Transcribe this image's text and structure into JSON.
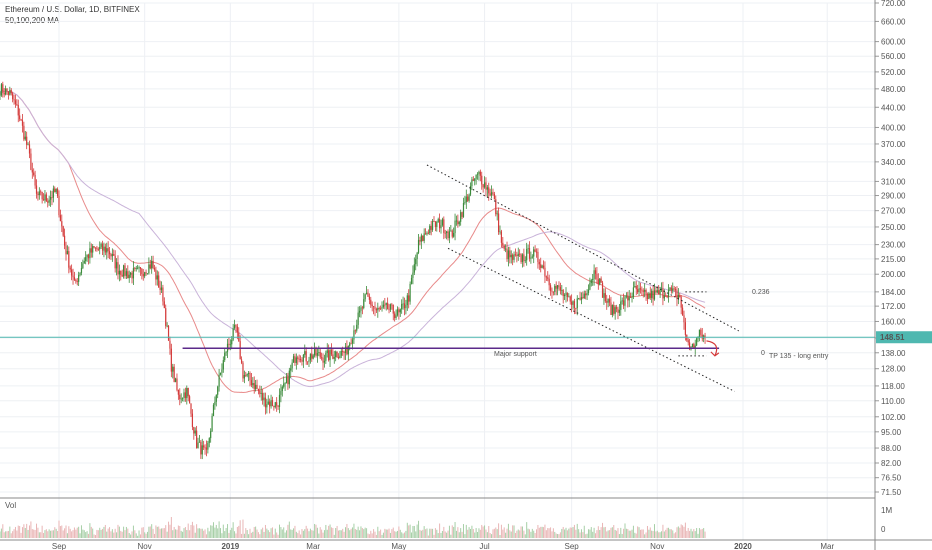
{
  "header": {
    "title": "Ethereum / U.S. Dollar, 1D, BITFINEX",
    "indicator": "50,100,200 MA"
  },
  "volume_pane": {
    "label": "Vol",
    "ticks": [
      "1M",
      "0"
    ]
  },
  "price_label": "148.51",
  "colors": {
    "up": "#3a8a3a",
    "down": "#d43a3a",
    "ma_fast": "#e88a8a",
    "ma_slow": "#c9b3d9",
    "support_line": "#5b2a8a",
    "price_line": "#4fb8b0",
    "arrow": "#d43a3a"
  },
  "annotations": {
    "support": "Major support",
    "fib": "0.236",
    "fib_zero": "0",
    "tp": "TP 135 - long entry"
  },
  "chart_data": {
    "type": "candlestick",
    "title": "Ethereum / U.S. Dollar, 1D, BITFINEX",
    "xlabel": "",
    "ylabel": "",
    "y_scale": "log",
    "y_ticks": [
      720,
      660,
      600,
      560,
      520,
      480,
      440,
      400,
      370,
      340,
      310,
      290,
      270,
      250,
      230,
      215,
      200,
      184,
      172,
      160,
      148,
      138,
      128,
      118,
      110,
      102,
      95,
      88,
      82,
      76.5,
      71.5
    ],
    "y_tick_labels": [
      "720.00",
      "660.00",
      "600.00",
      "560.00",
      "520.00",
      "480.00",
      "440.00",
      "400.00",
      "370.00",
      "340.00",
      "310.00",
      "290.00",
      "270.00",
      "250.00",
      "230.00",
      "215.00",
      "200.00",
      "184.00",
      "172.00",
      "160.00",
      "148.00",
      "138.00",
      "128.00",
      "118.00",
      "110.00",
      "102.00",
      "95.00",
      "88.00",
      "82.00",
      "76.50",
      "71.50"
    ],
    "x_ticks": [
      "Sep",
      "Nov",
      "2019",
      "Mar",
      "May",
      "Jul",
      "Sep",
      "Nov",
      "2020",
      "Mar"
    ],
    "x_range": [
      "2018-07-21",
      "2020-04-04"
    ],
    "last_price": 148.51,
    "price_path": [
      [
        "2018-07-21",
        480
      ],
      [
        "2018-07-28",
        470
      ],
      [
        "2018-08-03",
        430
      ],
      [
        "2018-08-10",
        360
      ],
      [
        "2018-08-16",
        290
      ],
      [
        "2018-08-23",
        285
      ],
      [
        "2018-08-30",
        295
      ],
      [
        "2018-09-05",
        230
      ],
      [
        "2018-09-12",
        190
      ],
      [
        "2018-09-19",
        215
      ],
      [
        "2018-09-26",
        225
      ],
      [
        "2018-10-06",
        225
      ],
      [
        "2018-10-13",
        205
      ],
      [
        "2018-10-21",
        200
      ],
      [
        "2018-10-29",
        202
      ],
      [
        "2018-11-06",
        210
      ],
      [
        "2018-11-14",
        180
      ],
      [
        "2018-11-20",
        130
      ],
      [
        "2018-11-25",
        112
      ],
      [
        "2018-12-01",
        115
      ],
      [
        "2018-12-08",
        90
      ],
      [
        "2018-12-15",
        85
      ],
      [
        "2018-12-22",
        115
      ],
      [
        "2018-12-29",
        140
      ],
      [
        "2019-01-05",
        155
      ],
      [
        "2019-01-10",
        125
      ],
      [
        "2019-01-17",
        120
      ],
      [
        "2019-01-25",
        110
      ],
      [
        "2019-02-03",
        108
      ],
      [
        "2019-02-10",
        120
      ],
      [
        "2019-02-17",
        138
      ],
      [
        "2019-02-24",
        135
      ],
      [
        "2019-03-02",
        137
      ],
      [
        "2019-03-09",
        135
      ],
      [
        "2019-03-17",
        138
      ],
      [
        "2019-03-24",
        138
      ],
      [
        "2019-04-01",
        160
      ],
      [
        "2019-04-08",
        180
      ],
      [
        "2019-04-15",
        168
      ],
      [
        "2019-04-23",
        170
      ],
      [
        "2019-05-01",
        165
      ],
      [
        "2019-05-08",
        180
      ],
      [
        "2019-05-15",
        230
      ],
      [
        "2019-05-23",
        250
      ],
      [
        "2019-05-31",
        255
      ],
      [
        "2019-06-07",
        240
      ],
      [
        "2019-06-15",
        270
      ],
      [
        "2019-06-23",
        310
      ],
      [
        "2019-06-27",
        320
      ],
      [
        "2019-07-03",
        300
      ],
      [
        "2019-07-07",
        290
      ],
      [
        "2019-07-14",
        225
      ],
      [
        "2019-07-20",
        215
      ],
      [
        "2019-07-26",
        215
      ],
      [
        "2019-08-03",
        222
      ],
      [
        "2019-08-10",
        212
      ],
      [
        "2019-08-17",
        190
      ],
      [
        "2019-08-24",
        185
      ],
      [
        "2019-09-01",
        172
      ],
      [
        "2019-09-09",
        180
      ],
      [
        "2019-09-18",
        205
      ],
      [
        "2019-09-24",
        180
      ],
      [
        "2019-09-30",
        168
      ],
      [
        "2019-10-08",
        175
      ],
      [
        "2019-10-16",
        185
      ],
      [
        "2019-10-24",
        180
      ],
      [
        "2019-11-01",
        182
      ],
      [
        "2019-11-09",
        185
      ],
      [
        "2019-11-17",
        180
      ],
      [
        "2019-11-21",
        150
      ],
      [
        "2019-11-25",
        140
      ],
      [
        "2019-12-01",
        150
      ],
      [
        "2019-12-05",
        148.51
      ]
    ],
    "series": [
      {
        "name": "50 MA"
      },
      {
        "name": "100 MA"
      }
    ],
    "lines": [
      {
        "start": [
          "2019-05-21",
          335
        ],
        "end": [
          "2019-12-29",
          153
        ]
      },
      {
        "start": [
          "2019-06-05",
          226
        ],
        "end": [
          "2019-12-26",
          115
        ]
      },
      {
        "start": [
          "2018-11-28",
          141
        ],
        "end": [
          "2019-12-15",
          141
        ]
      },
      {
        "start": [
          "2019-11-21",
          184
        ],
        "end": [
          "2019-12-06",
          184
        ]
      },
      {
        "start": [
          "2019-11-16",
          136
        ],
        "end": [
          "2019-12-06",
          136
        ]
      }
    ]
  }
}
